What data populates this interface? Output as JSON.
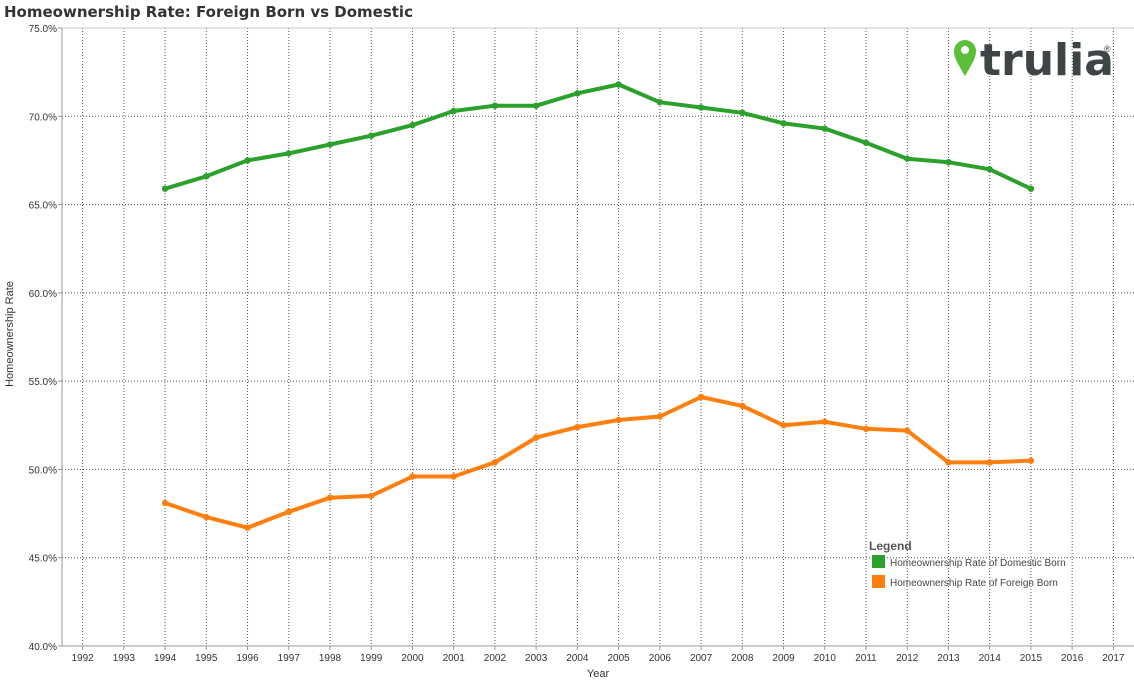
{
  "title": "Homeownership Rate: Foreign Born vs Domestic",
  "logo": {
    "text": "trulia",
    "mark": "®",
    "color": "#3f4447",
    "pin_color": "#5bbf3a"
  },
  "chart_data": {
    "type": "line",
    "xlabel": "Year",
    "ylabel": "Homeownership Rate",
    "xlim": [
      1991.5,
      2017.5
    ],
    "ylim": [
      40,
      75
    ],
    "x_ticks": [
      1992,
      1993,
      1994,
      1995,
      1996,
      1997,
      1998,
      1999,
      2000,
      2001,
      2002,
      2003,
      2004,
      2005,
      2006,
      2007,
      2008,
      2009,
      2010,
      2011,
      2012,
      2013,
      2014,
      2015,
      2016,
      2017
    ],
    "y_ticks": [
      40,
      45,
      50,
      55,
      60,
      65,
      70,
      75
    ],
    "y_tick_labels": [
      "40.0%",
      "45.0%",
      "50.0%",
      "55.0%",
      "60.0%",
      "65.0%",
      "70.0%",
      "75.0%"
    ],
    "grid": true,
    "legend": {
      "title": "Legend",
      "placement": "bottom-right"
    },
    "x": [
      1994,
      1995,
      1996,
      1997,
      1998,
      1999,
      2000,
      2001,
      2002,
      2003,
      2004,
      2005,
      2006,
      2007,
      2008,
      2009,
      2010,
      2011,
      2012,
      2013,
      2014,
      2015
    ],
    "series": [
      {
        "name": "Homeownership Rate of Domestic Born",
        "color": "#2ca02c",
        "values": [
          65.9,
          66.6,
          67.5,
          67.9,
          68.4,
          68.9,
          69.5,
          70.3,
          70.6,
          70.6,
          71.3,
          71.8,
          70.8,
          70.5,
          70.2,
          69.6,
          69.3,
          68.5,
          67.6,
          67.4,
          67.0,
          65.9
        ]
      },
      {
        "name": "Homeownership Rate of Foreign Born",
        "color": "#ff7f0e",
        "values": [
          48.1,
          47.3,
          46.7,
          47.6,
          48.4,
          48.5,
          49.6,
          49.6,
          50.4,
          51.8,
          52.4,
          52.8,
          53.0,
          54.1,
          53.6,
          52.5,
          52.7,
          52.3,
          52.2,
          50.4,
          50.4,
          50.5
        ]
      }
    ]
  }
}
